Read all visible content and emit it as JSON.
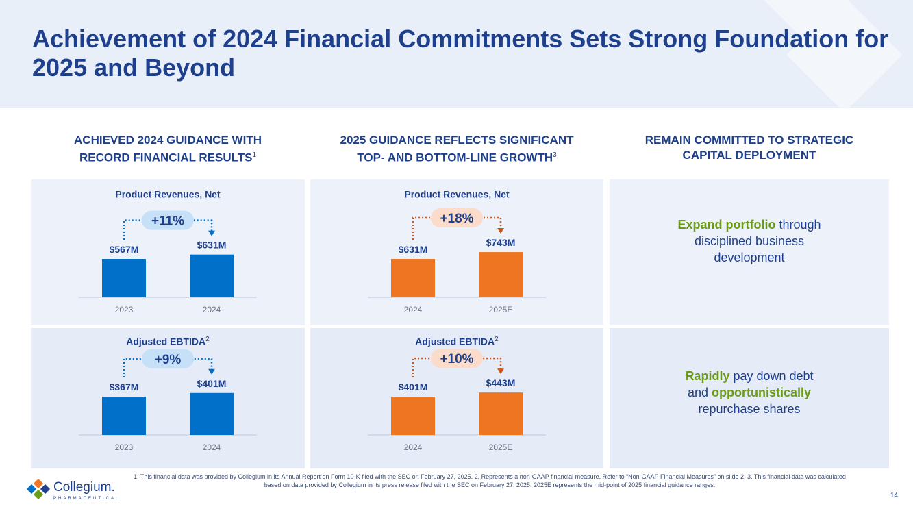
{
  "title": "Achievement of 2024 Financial Commitments Sets Strong Foundation for 2025 and Beyond",
  "colors": {
    "blue_bar": "#0070c9",
    "orange_bar": "#ee7623",
    "blue_pill": "#c6e0f7",
    "orange_pill": "#fbdccb",
    "navy": "#1d3f8c",
    "green": "#6a9b15"
  },
  "panels": [
    {
      "heading_line1": "ACHIEVED 2024 GUIDANCE WITH",
      "heading_line2": "RECORD FINANCIAL RESULTS",
      "heading_sup": "1"
    },
    {
      "heading_line1": "2025 GUIDANCE REFLECTS SIGNIFICANT",
      "heading_line2": "TOP- AND BOTTOM-LINE GROWTH",
      "heading_sup": "3"
    },
    {
      "heading_line1": "REMAIN COMMITTED TO STRATEGIC",
      "heading_line2": "CAPITAL DEPLOYMENT",
      "heading_sup": ""
    }
  ],
  "chart_data": [
    {
      "type": "bar",
      "title": "Product Revenues, Net",
      "title_sup": "",
      "categories": [
        "2023",
        "2024"
      ],
      "values": [
        567,
        631
      ],
      "labels": [
        "$567M",
        "$631M"
      ],
      "units": "$M",
      "growth_label": "+11%",
      "color_key": "blue"
    },
    {
      "type": "bar",
      "title": "Adjusted EBTIDA",
      "title_sup": "2",
      "categories": [
        "2023",
        "2024"
      ],
      "values": [
        367,
        401
      ],
      "labels": [
        "$367M",
        "$401M"
      ],
      "units": "$M",
      "growth_label": "+9%",
      "color_key": "blue"
    },
    {
      "type": "bar",
      "title": "Product Revenues, Net",
      "title_sup": "",
      "categories": [
        "2024",
        "2025E"
      ],
      "values": [
        631,
        743
      ],
      "labels": [
        "$631M",
        "$743M"
      ],
      "units": "$M",
      "growth_label": "+18%",
      "color_key": "orange"
    },
    {
      "type": "bar",
      "title": "Adjusted EBTIDA",
      "title_sup": "2",
      "categories": [
        "2024",
        "2025E"
      ],
      "values": [
        401,
        443
      ],
      "labels": [
        "$401M",
        "$443M"
      ],
      "units": "$M",
      "growth_label": "+10%",
      "color_key": "orange"
    }
  ],
  "strategy": [
    {
      "highlight": "Expand portfolio",
      "text1": " through",
      "text2": "disciplined business",
      "text3": "development"
    },
    {
      "highlight1": "Rapidly",
      "text1": " pay down debt",
      "text2": "and ",
      "highlight2": "opportunistically",
      "text3": "repurchase shares"
    }
  ],
  "footnote": "1. This financial data was provided by Collegium in its Annual Report on Form 10-K filed with the SEC on February 27, 2025. 2. Represents a non-GAAP financial measure. Refer to “Non-GAAP Financial Measures” on slide 2. 3. This financial data was calculated based on data provided by Collegium in its press release filed with the SEC on February 27, 2025. 2025E represents the mid-point of 2025 financial guidance ranges.",
  "logo": {
    "name": "Collegium.",
    "sub": "PHARMACEUTICAL"
  },
  "page_number": "14"
}
